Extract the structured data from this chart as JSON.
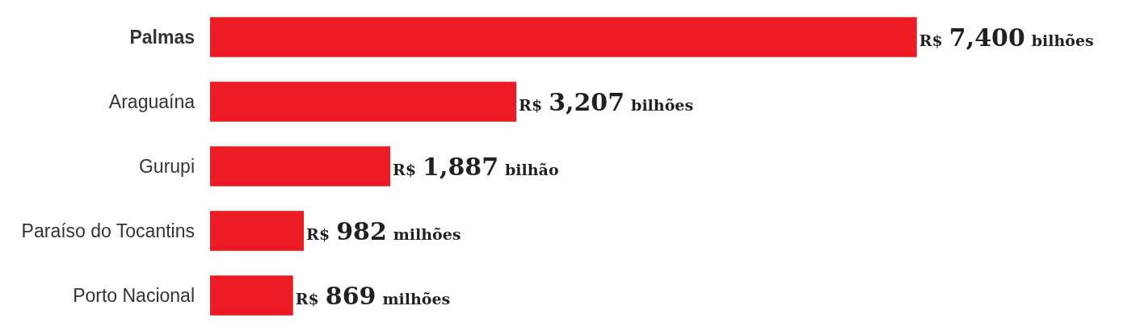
{
  "chart_data": {
    "type": "bar",
    "orientation": "horizontal",
    "categories": [
      "Palmas",
      "Araguaína",
      "Gurupi",
      "Paraíso do Tocantins",
      "Porto Nacional"
    ],
    "values": [
      7400,
      3207,
      1887,
      982,
      869
    ],
    "value_labels": [
      "R$ 7,400 bilhões",
      "R$ 3,207 bilhões",
      "R$ 1,887 bilhão",
      "R$ 982 milhões",
      "R$ 869 milhões"
    ],
    "color": "#ed1c24",
    "legend": false
  }
}
